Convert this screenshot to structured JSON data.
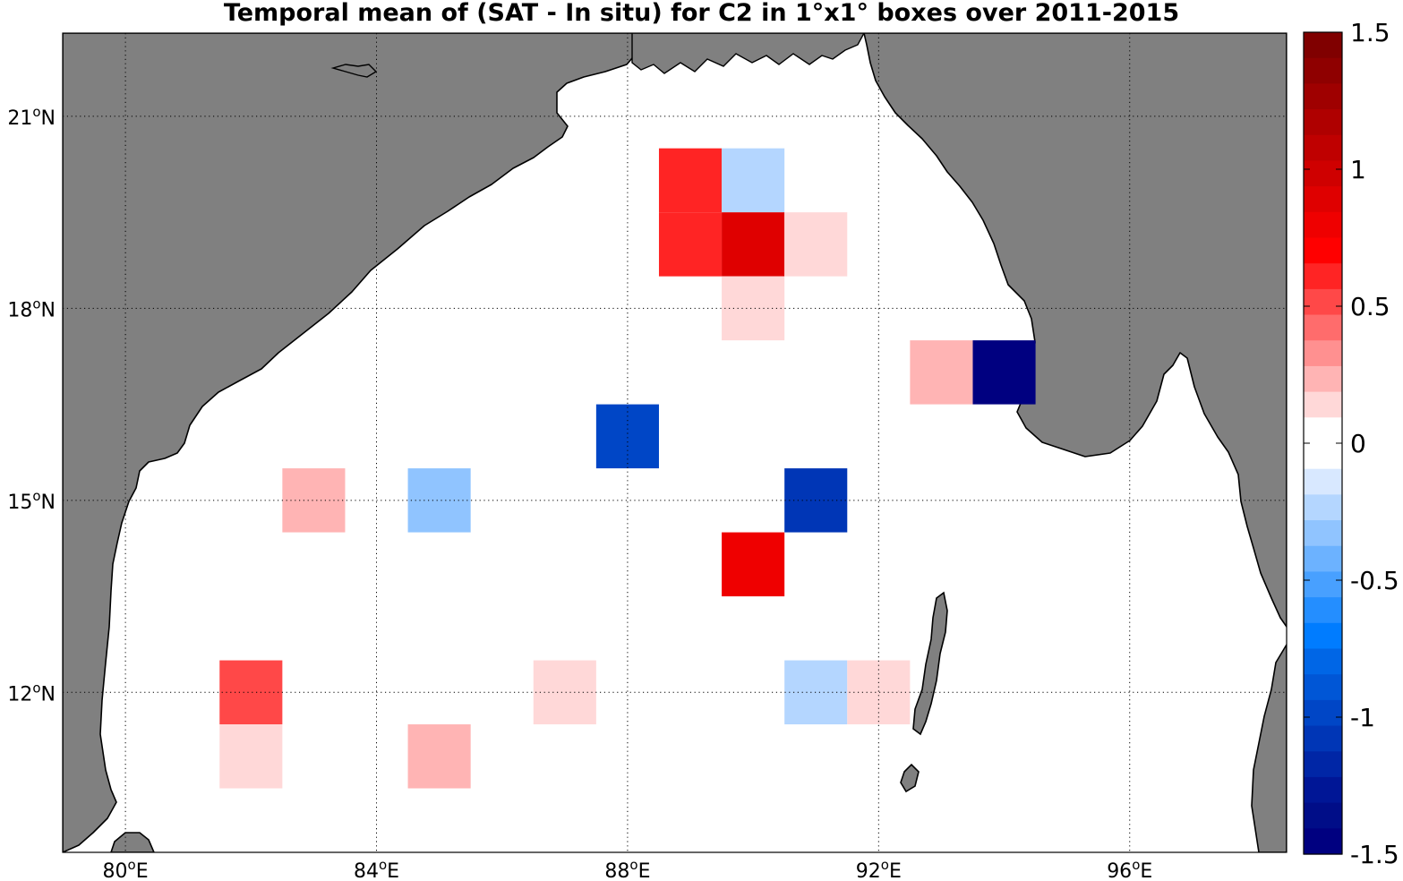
{
  "title": "Temporal mean of (SAT - In situ) for C2 in 1°x1° boxes over 2011-2015",
  "map": {
    "lon_range": [
      79,
      98.5
    ],
    "lat_range": [
      9.5,
      22.3
    ],
    "land_color": "#808080",
    "ocean_color": "#ffffff",
    "grid_style": "dotted",
    "x_ticks": [
      {
        "value": 80,
        "num": "80",
        "sup": "o",
        "hemi": "E"
      },
      {
        "value": 84,
        "num": "84",
        "sup": "o",
        "hemi": "E"
      },
      {
        "value": 88,
        "num": "88",
        "sup": "o",
        "hemi": "E"
      },
      {
        "value": 92,
        "num": "92",
        "sup": "o",
        "hemi": "E"
      },
      {
        "value": 96,
        "num": "96",
        "sup": "o",
        "hemi": "E"
      }
    ],
    "y_ticks": [
      {
        "value": 21,
        "num": "21",
        "sup": "o",
        "hemi": "N"
      },
      {
        "value": 18,
        "num": "18",
        "sup": "o",
        "hemi": "N"
      },
      {
        "value": 15,
        "num": "15",
        "sup": "o",
        "hemi": "N"
      },
      {
        "value": 12,
        "num": "12",
        "sup": "o",
        "hemi": "N"
      }
    ]
  },
  "cells": [
    {
      "lon": 89,
      "lat": 20,
      "value": 0.6
    },
    {
      "lon": 90,
      "lat": 20,
      "value": -0.2
    },
    {
      "lon": 89,
      "lat": 19,
      "value": 0.6
    },
    {
      "lon": 90,
      "lat": 19,
      "value": 0.9
    },
    {
      "lon": 91,
      "lat": 19,
      "value": 0.15
    },
    {
      "lon": 90,
      "lat": 18,
      "value": 0.15
    },
    {
      "lon": 93,
      "lat": 17,
      "value": 0.25
    },
    {
      "lon": 94,
      "lat": 17,
      "value": -1.45
    },
    {
      "lon": 88,
      "lat": 16,
      "value": -0.95
    },
    {
      "lon": 83,
      "lat": 15,
      "value": 0.25
    },
    {
      "lon": 85,
      "lat": 15,
      "value": -0.35
    },
    {
      "lon": 91,
      "lat": 15,
      "value": -1.05
    },
    {
      "lon": 90,
      "lat": 14,
      "value": 0.8
    },
    {
      "lon": 82,
      "lat": 12,
      "value": 0.5
    },
    {
      "lon": 87,
      "lat": 12,
      "value": 0.15
    },
    {
      "lon": 91,
      "lat": 12,
      "value": -0.25
    },
    {
      "lon": 92,
      "lat": 12,
      "value": 0.15
    },
    {
      "lon": 82,
      "lat": 11,
      "value": 0.15
    },
    {
      "lon": 85,
      "lat": 11,
      "value": 0.25
    }
  ],
  "colorbar": {
    "min": -1.5,
    "max": 1.5,
    "ticks": [
      {
        "value": 1.5,
        "label": "1.5"
      },
      {
        "value": 1,
        "label": "1"
      },
      {
        "value": 0.5,
        "label": "0.5"
      },
      {
        "value": 0,
        "label": "0"
      },
      {
        "value": -0.5,
        "label": "-0.5"
      },
      {
        "value": -1,
        "label": "-1"
      },
      {
        "value": -1.5,
        "label": "-1.5"
      }
    ],
    "colors_top_to_bottom": [
      "#800000",
      "#8f0000",
      "#9f0000",
      "#af0000",
      "#bf0000",
      "#cf0000",
      "#df0000",
      "#ef0000",
      "#ff0000",
      "#ff2424",
      "#ff4848",
      "#ff6c6c",
      "#ff9090",
      "#ffb4b4",
      "#ffd8d8",
      "#ffffff",
      "#ffffff",
      "#d8e8ff",
      "#b4d6ff",
      "#90c4ff",
      "#6cb2ff",
      "#48a0ff",
      "#248eff",
      "#007cff",
      "#0066e6",
      "#0056d6",
      "#0046c6",
      "#0036b6",
      "#0026a6",
      "#001696",
      "#000d88",
      "#000080"
    ]
  }
}
